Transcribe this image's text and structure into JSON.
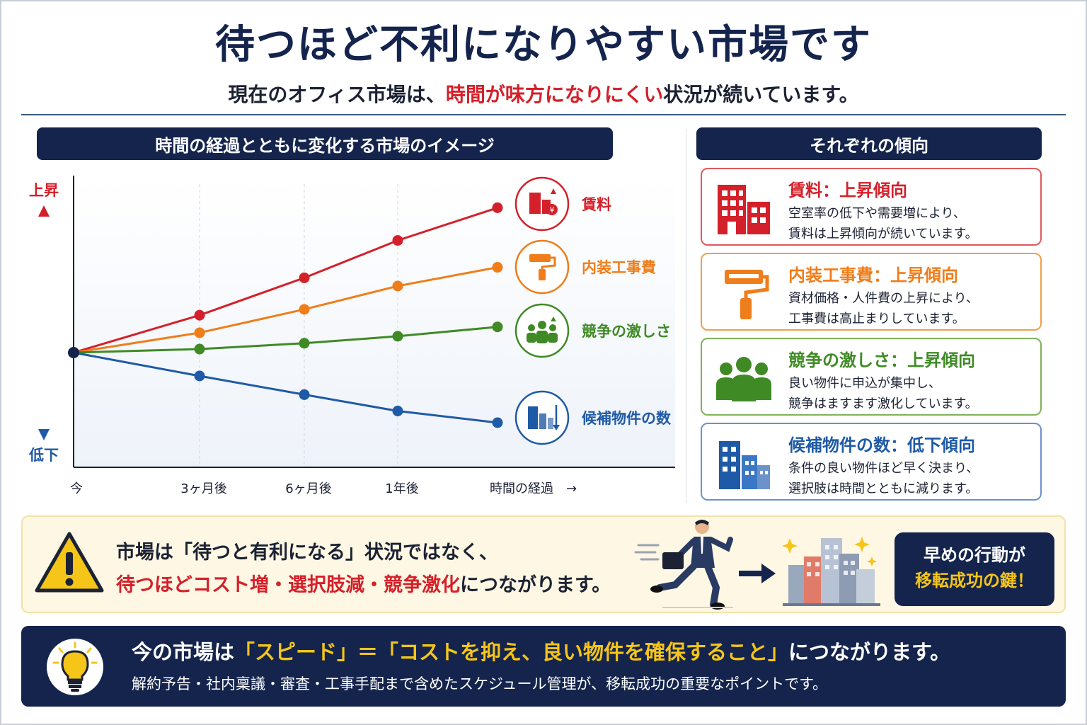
{
  "header": {
    "title": "待つほど不利になりやすい市場です",
    "subtitle_pre": "現在のオフィス市場は、",
    "subtitle_highlight": "時間が味方になりにくい",
    "subtitle_post": "状況が続いています。"
  },
  "chart_section": {
    "heading": "時間の経過とともに変化する市場のイメージ"
  },
  "chart_data": {
    "type": "line",
    "y_top_label": "上昇",
    "y_bottom_label": "低下",
    "x": [
      "今",
      "3ヶ月後",
      "6ヶ月後",
      "1年後",
      ""
    ],
    "x_arrow_label": "時間の経過　→",
    "grid": "vertical dashed",
    "series": [
      {
        "name": "賃料",
        "color": "#d4202a",
        "values": [
          0,
          1.6,
          3.2,
          4.8,
          6.2
        ]
      },
      {
        "name": "内装工事費",
        "color": "#ef7d1a",
        "values": [
          0,
          0.85,
          1.85,
          2.85,
          3.65
        ]
      },
      {
        "name": "競争の激しさ",
        "color": "#3f8a25",
        "values": [
          0,
          0.15,
          0.4,
          0.7,
          1.1
        ]
      },
      {
        "name": "候補物件の数",
        "color": "#1f5aa6",
        "values": [
          0,
          -1.0,
          -1.8,
          -2.5,
          -3.0
        ]
      }
    ]
  },
  "trends_section": {
    "heading": "それぞれの傾向",
    "cards": [
      {
        "title": "賃料：上昇傾向",
        "line1": "空室率の低下や需要増により、",
        "line2": "賃料は上昇傾向が続いています。",
        "color": "#d4202a",
        "icon": "building-icon"
      },
      {
        "title": "内装工事費：上昇傾向",
        "line1": "資材価格・人件費の上昇により、",
        "line2": "工事費は高止まりしています。",
        "color": "#ef7d1a",
        "icon": "paint-roller-icon"
      },
      {
        "title": "競争の激しさ：上昇傾向",
        "line1": "良い物件に申込が集中し、",
        "line2": "競争はますます激化しています。",
        "color": "#3f8a25",
        "icon": "people-group-icon"
      },
      {
        "title": "候補物件の数：低下傾向",
        "line1": "条件の良い物件ほど早く決まり、",
        "line2": "選択肢は時間とともに減ります。",
        "color": "#1f5aa6",
        "icon": "office-buildings-icon"
      }
    ]
  },
  "warning": {
    "line1": "市場は「待つと有利になる」状況ではなく、",
    "line2_red": "待つほどコスト増・選択肢減・競争激化",
    "line2_post": "につながります。",
    "cta_line1": "早めの行動が",
    "cta_line2": "移転成功の鍵！"
  },
  "bottom": {
    "main_pre": "今の市場は",
    "main_gold": "「スピード」＝「コストを抑え、良い物件を確保すること」",
    "main_post": "につながります。",
    "sub": "解約予告・社内稟議・審査・工事手配まで含めたスケジュール管理が、移転成功の重要なポイントです。"
  }
}
